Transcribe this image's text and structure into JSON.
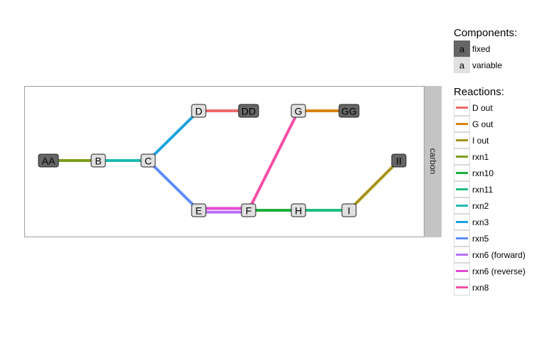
{
  "facet_label": "carbon",
  "components_legend": {
    "title": "Components:",
    "items": [
      {
        "key_label": "a",
        "label": "fixed",
        "fill": "#666666"
      },
      {
        "key_label": "a",
        "label": "variable",
        "fill": "#e0e0e0"
      }
    ]
  },
  "reactions_legend": {
    "title": "Reactions:",
    "items": [
      {
        "label": "D out",
        "color": "#ed6a6a"
      },
      {
        "label": "G out",
        "color": "#d8820e"
      },
      {
        "label": "I out",
        "color": "#a89218"
      },
      {
        "label": "rxn1",
        "color": "#7b9e1c"
      },
      {
        "label": "rxn10",
        "color": "#1cae3c"
      },
      {
        "label": "rxn11",
        "color": "#1ebe7e"
      },
      {
        "label": "rxn2",
        "color": "#1ebab4"
      },
      {
        "label": "rxn3",
        "color": "#1aa2e2"
      },
      {
        "label": "rxn5",
        "color": "#5e8cf8"
      },
      {
        "label": "rxn6 (forward)",
        "color": "#b771f4"
      },
      {
        "label": "rxn6 (reverse)",
        "color": "#e248da"
      },
      {
        "label": "rxn8",
        "color": "#f54ea6"
      }
    ]
  },
  "colors": {
    "fixed_fill": "#666666",
    "variable_fill": "#e0e0e0",
    "node_border": "#222222",
    "strip": "#c4c4c4"
  },
  "nodes": [
    {
      "id": "AA",
      "label": "AA",
      "type": "fixed"
    },
    {
      "id": "B",
      "label": "B",
      "type": "variable"
    },
    {
      "id": "C",
      "label": "C",
      "type": "variable"
    },
    {
      "id": "D",
      "label": "D",
      "type": "variable"
    },
    {
      "id": "DD",
      "label": "DD",
      "type": "fixed"
    },
    {
      "id": "E",
      "label": "E",
      "type": "variable"
    },
    {
      "id": "F",
      "label": "F",
      "type": "variable"
    },
    {
      "id": "G",
      "label": "G",
      "type": "variable"
    },
    {
      "id": "GG",
      "label": "GG",
      "type": "fixed"
    },
    {
      "id": "H",
      "label": "H",
      "type": "variable"
    },
    {
      "id": "I",
      "label": "I",
      "type": "variable"
    },
    {
      "id": "II",
      "label": "II",
      "type": "fixed"
    }
  ],
  "edges": [
    {
      "from": "AA",
      "to": "B",
      "reaction": "rxn1"
    },
    {
      "from": "B",
      "to": "C",
      "reaction": "rxn2"
    },
    {
      "from": "C",
      "to": "D",
      "reaction": "rxn3"
    },
    {
      "from": "C",
      "to": "E",
      "reaction": "rxn5"
    },
    {
      "from": "D",
      "to": "DD",
      "reaction": "D out"
    },
    {
      "from": "E",
      "to": "F",
      "reaction": "rxn6 (forward)"
    },
    {
      "from": "E",
      "to": "F",
      "reaction": "rxn6 (reverse)"
    },
    {
      "from": "F",
      "to": "G",
      "reaction": "rxn8"
    },
    {
      "from": "F",
      "to": "H",
      "reaction": "rxn10"
    },
    {
      "from": "G",
      "to": "GG",
      "reaction": "G out"
    },
    {
      "from": "H",
      "to": "I",
      "reaction": "rxn11"
    },
    {
      "from": "I",
      "to": "II",
      "reaction": "I out"
    }
  ]
}
